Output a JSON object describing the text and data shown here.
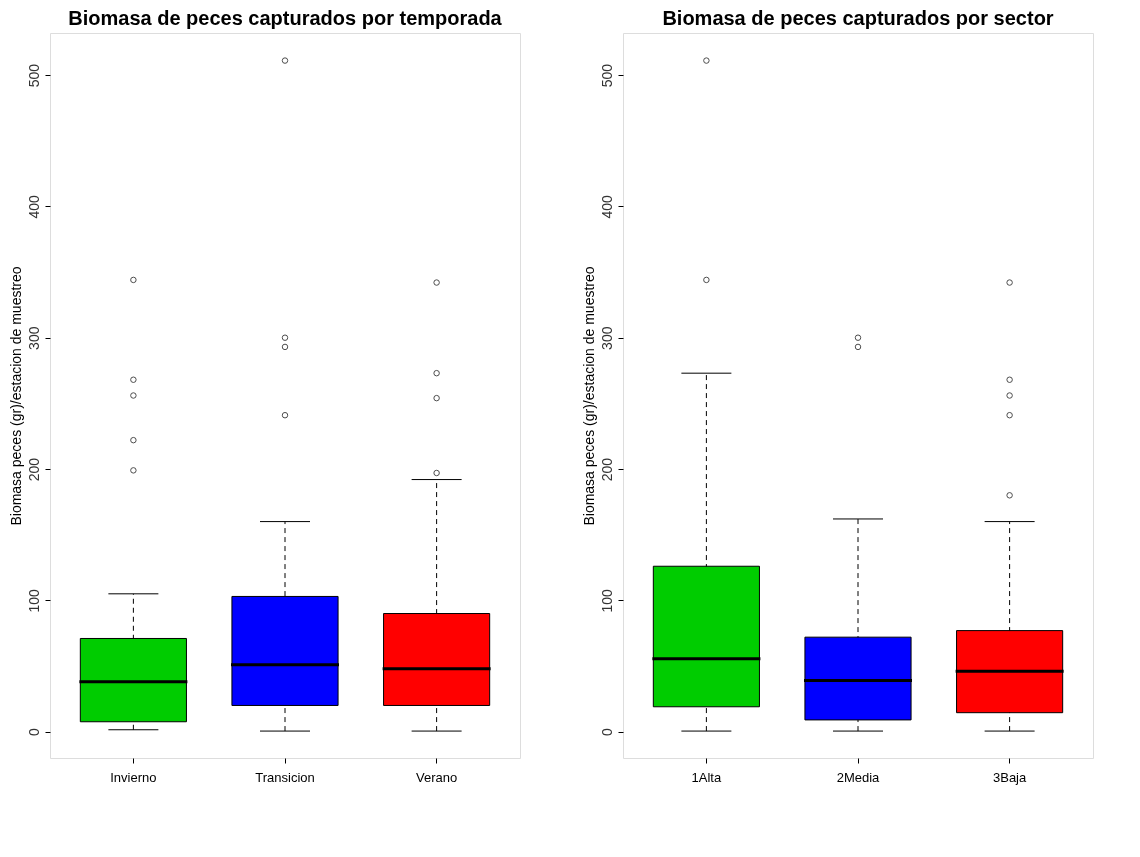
{
  "chart_data": [
    {
      "type": "box",
      "title": "Biomasa de peces capturados por temporada",
      "ylabel": "Biomasa peces (gr)/estacion de muestreo",
      "categories": [
        "Invierno",
        "Transicion",
        "Verano"
      ],
      "colors": [
        "#00cc00",
        "#0000ff",
        "#ff0000"
      ],
      "ylim": [
        -20,
        532
      ],
      "yticks": [
        0,
        100,
        200,
        300,
        400,
        500
      ],
      "grid": false,
      "boxes": [
        {
          "low": 1.5,
          "q1": 7.6,
          "median": 38,
          "q3": 71,
          "high": 105,
          "outliers": [
            199,
            222,
            256,
            268,
            344
          ]
        },
        {
          "low": 0.5,
          "q1": 20,
          "median": 51,
          "q3": 103,
          "high": 160,
          "outliers": [
            241,
            293,
            300,
            511
          ]
        },
        {
          "low": 0.5,
          "q1": 20,
          "median": 48,
          "q3": 90,
          "high": 192,
          "outliers": [
            197,
            254,
            273,
            342
          ]
        }
      ]
    },
    {
      "type": "box",
      "title": "Biomasa de peces capturados por sector",
      "ylabel": "Biomasa peces (gr)/estacion de muestreo",
      "categories": [
        "1Alta",
        "2Media",
        "3Baja"
      ],
      "colors": [
        "#00cc00",
        "#0000ff",
        "#ff0000"
      ],
      "ylim": [
        -20,
        532
      ],
      "yticks": [
        0,
        100,
        200,
        300,
        400,
        500
      ],
      "grid": false,
      "boxes": [
        {
          "low": 0.5,
          "q1": 19,
          "median": 55.5,
          "q3": 126,
          "high": 273,
          "outliers": [
            344,
            511
          ]
        },
        {
          "low": 0.5,
          "q1": 9,
          "median": 39,
          "q3": 72,
          "high": 162,
          "outliers": [
            293,
            300
          ]
        },
        {
          "low": 0.5,
          "q1": 14.5,
          "median": 46,
          "q3": 77,
          "high": 160,
          "outliers": [
            180,
            241,
            256,
            268,
            342
          ]
        }
      ]
    }
  ]
}
